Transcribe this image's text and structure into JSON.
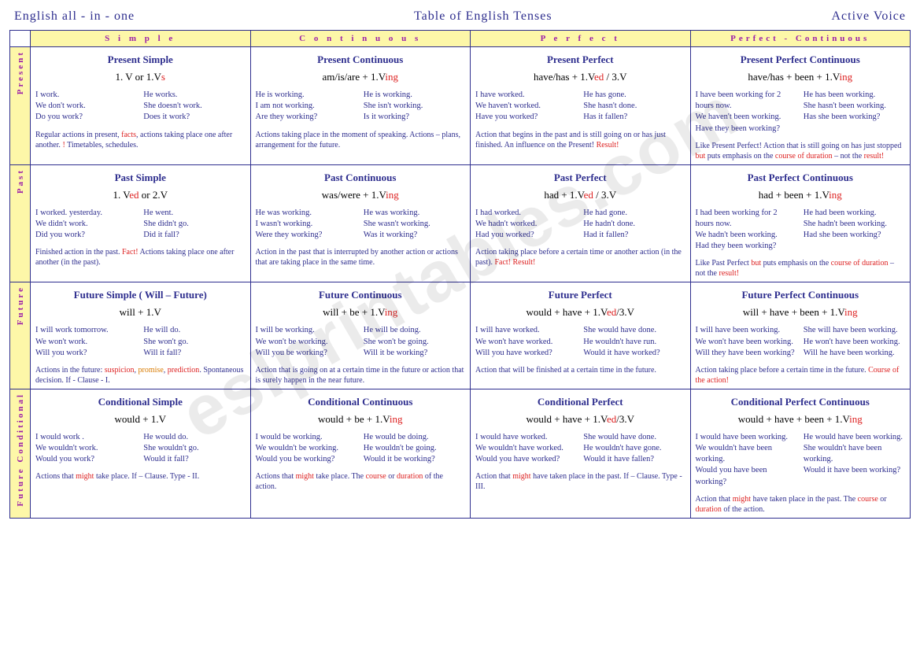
{
  "header": {
    "left": "English  all - in - one",
    "center": "Table  of   English  Tenses",
    "right": "Active Voice"
  },
  "colHeaders": [
    "S i m p l e",
    "C o n t i n u o u s",
    "P e r f e c t",
    "Perfect  -  Continuous"
  ],
  "rowHeaders": [
    "Present",
    "Past",
    "Future",
    "Future Conditional"
  ],
  "cells": [
    [
      {
        "title": "Present  Simple",
        "formula_pre": "1. V  or  1.V",
        "formula_red": "s",
        "formula_post": "",
        "exL": [
          "I work.",
          "We don't work.",
          "Do you work?"
        ],
        "exR": [
          "He works.",
          "She  doesn't work.",
          "Does  it work?"
        ],
        "note_html": "Regular actions in present, <span class='red'>facts</span>, actions taking place one after another. <span class='red'>!</span> Timetables, schedules."
      },
      {
        "title": "Present  Continuous",
        "formula_pre": "am/is/are  +  1.V",
        "formula_red": "ing",
        "formula_post": "",
        "exL": [
          "He is working.",
          "I am not working.",
          "Are they working?"
        ],
        "exR": [
          "He is working.",
          "She  isn't working.",
          "Is  it  working?"
        ],
        "note_html": "Actions  taking place in the moment of speaking. Actions – plans, arrangement for the future."
      },
      {
        "title": "Present  Perfect",
        "formula_pre": "have/has  +  1.V",
        "formula_red": "ed",
        "formula_post": " / 3.V",
        "exL": [
          "I have worked.",
          "We  haven't worked.",
          "Have you  worked?"
        ],
        "exR": [
          "He has gone.",
          "She hasn't  done.",
          "Has it fallen?"
        ],
        "note_html": "Action that begins in the past and is still going on or has just finished.  An influence on the Present! <span class='red'>Result!</span>"
      },
      {
        "title": "Present Perfect  Continuous",
        "formula_pre": "have/has  +  been +  1.V",
        "formula_red": "ing",
        "formula_post": "",
        "exL": [
          "I  have  been working for 2 hours now.",
          "We  haven't been working.",
          "Have they been working?"
        ],
        "exR": [
          "He has been working.",
          "She hasn't been working.",
          "Has she been working?"
        ],
        "note_html": "Like Present Perfect! Action that is still going on  has just stopped <span class='red'>but</span> puts emphasis on the <span class='red'>course of duration</span> – not the <span class='red'>result!</span>"
      }
    ],
    [
      {
        "title": "Past  Simple",
        "formula_pre": "1. V",
        "formula_red": "ed",
        "formula_post": "  or  2.V",
        "exL": [
          "I worked. yesterday.",
          "We didn't work.",
          "Did you work?"
        ],
        "exR": [
          "He went.",
          "She  didn't go.",
          "Did  it fall?"
        ],
        "note_html": "Finished action in the past. <span class='red'>Fact!</span>  Actions taking place one after another (in the past)."
      },
      {
        "title": "Past  Continuous",
        "formula_pre": "was/were  +  1.V",
        "formula_red": "ing",
        "formula_post": "",
        "exL": [
          "He was working.",
          "I wasn't  working.",
          "Were they working?"
        ],
        "exR": [
          "He was working.",
          "She  wasn't working.",
          "Was  it  working?"
        ],
        "note_html": "Action in the past that is interrupted by another action or actions that are taking place in the same time."
      },
      {
        "title": "Past  Perfect",
        "formula_pre": "had  +  1.V",
        "formula_red": "ed",
        "formula_post": " / 3.V",
        "exL": [
          "I had worked.",
          "We hadn't worked.",
          "Had you  worked?"
        ],
        "exR": [
          "He had gone.",
          "He hadn't  done.",
          "Had  it fallen?"
        ],
        "note_html": "Action taking place before a certain time or another action (in the past). <span class='red'>Fact! Result!</span>"
      },
      {
        "title": "Past Perfect  Continuous",
        "formula_pre": "had  +  been +  1.V",
        "formula_red": "ing",
        "formula_post": "",
        "exL": [
          "I  had  been working for 2 hours now.",
          "We  hadn't been working.",
          "Had they been working?"
        ],
        "exR": [
          "He had been working.",
          "She hadn't been working.",
          "Had she been working?"
        ],
        "note_html": "Like Past Perfect <span class='red'>but</span> puts emphasis on the <span class='red'>course of duration</span> – not the <span class='red'>result!</span>"
      }
    ],
    [
      {
        "title": "Future Simple ( Will – Future)",
        "formula_pre": "will  +  1.V",
        "formula_red": "",
        "formula_post": "",
        "exL": [
          "I will work tomorrow.",
          "We  won't work.",
          "Will you work?"
        ],
        "exR": [
          "He will  do.",
          "She  won't go.",
          "Will it  fall?"
        ],
        "note_html": "Actions in the future: <span class='red'>suspicion</span>, <span class='org'>promise</span>, <span class='red'>prediction</span>. Spontaneous decision. If - Clause - I."
      },
      {
        "title": "Future  Continuous",
        "formula_pre": "will  +  be  + 1.V",
        "formula_red": "ing",
        "formula_post": "",
        "exL": [
          "I  will be working.",
          "We won't be working.",
          "Will  you  be working?"
        ],
        "exR": [
          "He will be doing.",
          "She  won't be going.",
          "Will it be working?"
        ],
        "note_html": "Action that is going on at a certain time in the future or action that is surely happen in the near future."
      },
      {
        "title": "Future  Perfect",
        "formula_pre": "would  +  have  + 1.V",
        "formula_red": "ed",
        "formula_post": "/3.V",
        "exL": [
          "I will have worked.",
          "We won't  have worked.",
          "Will  you  have worked?"
        ],
        "exR": [
          "She would  have done.",
          "He wouldn't have run.",
          "Would it have worked?"
        ],
        "note_html": "Action that will be finished at a certain time in the future."
      },
      {
        "title": "Future Perfect Continuous",
        "formula_pre": "will + have  +  been +  1.V",
        "formula_red": "ing",
        "formula_post": "",
        "exL": [
          "I  will  have  been working.",
          "We  won't have been working.",
          "Will  they  have  been working?"
        ],
        "exR": [
          "She  will  have  been  working.",
          "He  won't  have been working.",
          "Will  he  have been working."
        ],
        "note_html": "Action taking place before a certain time in the future. <span class='red'>Course of the action!</span>"
      }
    ],
    [
      {
        "title": "Conditional Simple",
        "formula_pre": "would  +  1.V",
        "formula_red": "",
        "formula_post": "",
        "exL": [
          "I would work .",
          "We wouldn't work.",
          "Would  you work?"
        ],
        "exR": [
          "He would do.",
          "She wouldn't go.",
          "Would it  fall?"
        ],
        "note_html": "Actions that <span class='red'>might</span> take place. If – Clause. Type - II."
      },
      {
        "title": "Conditional   Continuous",
        "formula_pre": "would  +  be  + 1.V",
        "formula_red": "ing",
        "formula_post": "",
        "exL": [
          "I would be working.",
          "We wouldn't be working.",
          "Would you be working?"
        ],
        "exR": [
          "He  would  be doing.",
          "He wouldn't be going.",
          "Would it be working?"
        ],
        "note_html": "Actions that <span class='red'>might</span> take place. The <span class='red'>course</span> or <span class='red'>duration</span> of the action."
      },
      {
        "title": "Conditional  Perfect",
        "formula_pre": "would + have  + 1.V",
        "formula_red": "ed",
        "formula_post": "/3.V",
        "exL": [
          "I would have worked.",
          "We wouldn't have worked.",
          "Would you  have worked?"
        ],
        "exR": [
          "She would  have done.",
          "He wouldn't have gone.",
          "Would it have fallen?"
        ],
        "note_html": "Action that <span class='red'>might</span> have taken place in the past. If – Clause. Type - III."
      },
      {
        "title": "Conditional Perfect  Continuous",
        "formula_pre": "would  + have  +  been +  1.V",
        "formula_red": "ing",
        "formula_post": "",
        "exL": [
          "I would  have  been working.",
          "We  wouldn't have been working.",
          "Would you have been working?"
        ],
        "exR": [
          "He would  have  been working.",
          "She wouldn't have been working.",
          "Would it have been working?"
        ],
        "note_html": "Action that <span class='red'>might</span> have taken place in the past. The <span class='red'>course</span> or <span class='red'>duration</span> of the action."
      }
    ]
  ],
  "watermark": "eslprintables.com",
  "colors": {
    "header_text": "#2e2e8e",
    "row_bg": "#fdf7a8",
    "accent": "#9c1fa8",
    "red": "#d22"
  }
}
